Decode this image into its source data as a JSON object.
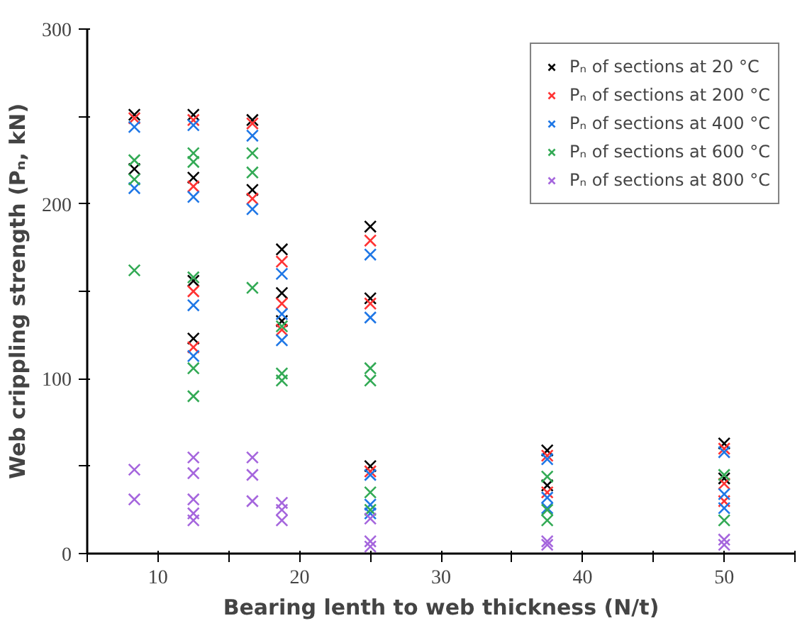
{
  "chart_data": {
    "type": "scatter",
    "xlabel": "Bearing lenth to web thickness (N/t)",
    "ylabel": "Web crippling strength (Pₙ, kN)",
    "xlim": [
      5,
      55
    ],
    "xticks": [
      {
        "value": 5,
        "label": null
      },
      10,
      {
        "value": 15,
        "label": null
      },
      20,
      {
        "value": 25,
        "label": null
      },
      30,
      {
        "value": 35,
        "label": null
      },
      40,
      {
        "value": 45,
        "label": null
      },
      50,
      {
        "value": 55,
        "label": null
      }
    ],
    "ylim": [
      0,
      300
    ],
    "yticks": [
      0,
      {
        "value": 50,
        "label": null
      },
      100,
      {
        "value": 150,
        "label": null
      },
      200,
      {
        "value": 250,
        "label": null
      },
      300
    ],
    "grid": false,
    "legend": "top right",
    "marker": "cross",
    "series": [
      {
        "name": "Pₙ of sections at 20 °C",
        "color": "#000000",
        "x": [
          8.33,
          8.33,
          12.5,
          12.5,
          12.5,
          12.5,
          16.67,
          16.67,
          18.75,
          18.75,
          18.75,
          25,
          25,
          25,
          37.5,
          37.5,
          50,
          50
        ],
        "values": [
          251,
          220,
          251,
          215,
          156,
          123,
          248,
          208,
          174,
          149,
          133,
          187,
          146,
          50,
          59,
          39,
          63,
          43
        ]
      },
      {
        "name": "Pₙ of sections at 200 °C",
        "color": "#ff3333",
        "x": [
          8.33,
          12.5,
          12.5,
          12.5,
          12.5,
          16.67,
          16.67,
          18.75,
          18.75,
          18.75,
          25,
          25,
          25,
          37.5,
          37.5,
          50,
          50,
          50
        ],
        "values": [
          249,
          248,
          210,
          150,
          118,
          246,
          203,
          167,
          143,
          128,
          179,
          143,
          47,
          56,
          35,
          60,
          40,
          30
        ]
      },
      {
        "name": "Pₙ of sections at 400 °C",
        "color": "#1f77e6",
        "x": [
          8.33,
          8.33,
          12.5,
          12.5,
          12.5,
          12.5,
          16.67,
          16.67,
          18.75,
          18.75,
          18.75,
          25,
          25,
          25,
          25,
          25,
          37.5,
          37.5,
          37.5,
          50,
          50,
          50
        ],
        "values": [
          244,
          209,
          245,
          204,
          142,
          113,
          239,
          197,
          160,
          137,
          122,
          171,
          135,
          45,
          28,
          23,
          54,
          32,
          26,
          58,
          34,
          26
        ]
      },
      {
        "name": "Pₙ of sections at 600 °C",
        "color": "#33aa55",
        "x": [
          8.33,
          8.33,
          8.33,
          12.5,
          12.5,
          12.5,
          12.5,
          12.5,
          16.67,
          16.67,
          16.67,
          18.75,
          18.75,
          18.75,
          25,
          25,
          25,
          25,
          37.5,
          37.5,
          37.5,
          50,
          50
        ],
        "values": [
          225,
          214,
          162,
          229,
          224,
          158,
          106,
          90,
          229,
          218,
          152,
          130,
          103,
          99,
          106,
          99,
          35,
          25,
          44,
          25,
          19,
          45,
          19
        ]
      },
      {
        "name": "Pₙ of sections at 800 °C",
        "color": "#a566dd",
        "x": [
          8.33,
          8.33,
          12.5,
          12.5,
          12.5,
          12.5,
          12.5,
          16.67,
          16.67,
          16.67,
          18.75,
          18.75,
          18.75,
          25,
          25,
          25,
          37.5,
          37.5,
          50,
          50
        ],
        "values": [
          48,
          31,
          55,
          46,
          31,
          23,
          19,
          55,
          45,
          30,
          29,
          25,
          19,
          20,
          7,
          4,
          7,
          5,
          8,
          5
        ]
      }
    ]
  }
}
